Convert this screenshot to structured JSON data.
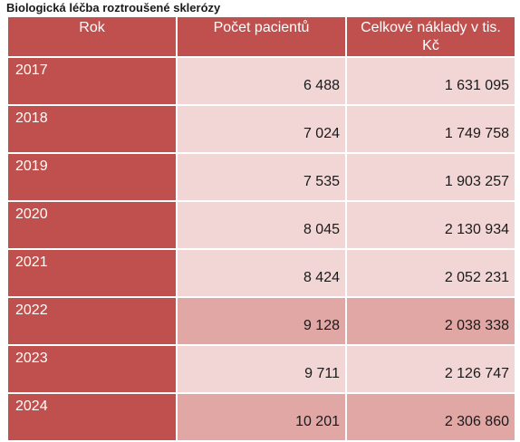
{
  "title": "Biologická léčba roztroušené sklerózy",
  "columns": [
    "Rok",
    "Počet pacientů",
    "Celkové náklady v tis. Kč"
  ],
  "rows": [
    {
      "year": "2017",
      "patients": "6 488",
      "cost": "1 631 095",
      "shade": "light"
    },
    {
      "year": "2018",
      "patients": "7 024",
      "cost": "1 749 758",
      "shade": "light"
    },
    {
      "year": "2019",
      "patients": "7 535",
      "cost": "1 903 257",
      "shade": "light"
    },
    {
      "year": "2020",
      "patients": "8 045",
      "cost": "2 130 934",
      "shade": "light"
    },
    {
      "year": "2021",
      "patients": "8 424",
      "cost": "2 052 231",
      "shade": "light"
    },
    {
      "year": "2022",
      "patients": "9 128",
      "cost": "2 038 338",
      "shade": "dark"
    },
    {
      "year": "2023",
      "patients": "9 711",
      "cost": "2 126 747",
      "shade": "light"
    },
    {
      "year": "2024",
      "patients": "10 201",
      "cost": "2 306 860",
      "shade": "dark"
    }
  ],
  "colors": {
    "header": "#c0504d",
    "light_cell": "#f1d6d5",
    "dark_cell": "#e0a7a5"
  }
}
